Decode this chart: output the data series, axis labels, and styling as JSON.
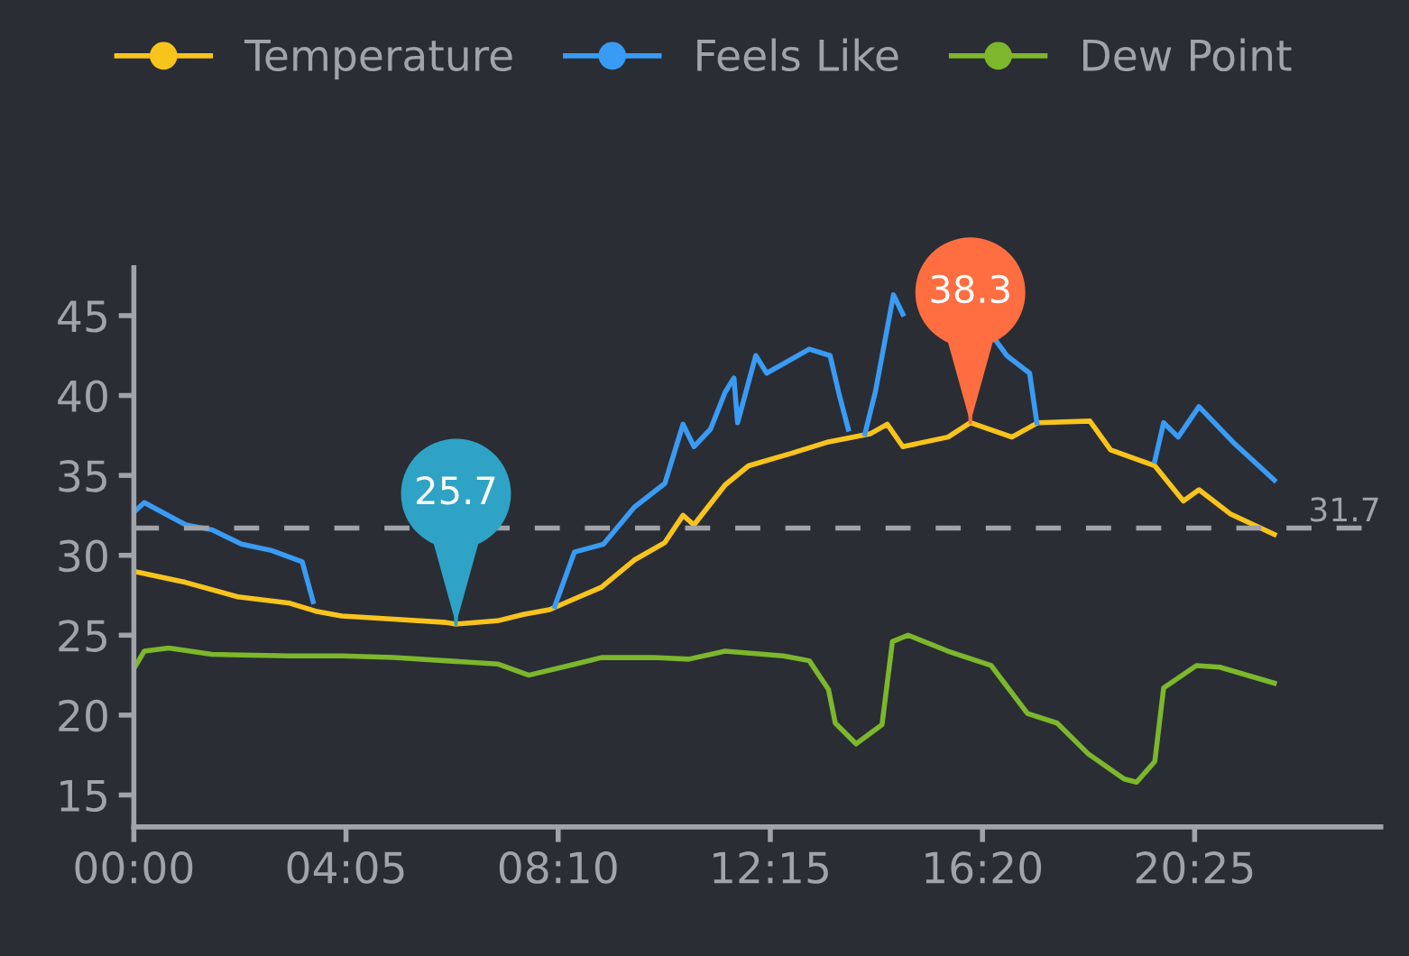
{
  "chart_data": {
    "type": "line",
    "xlim": [
      0,
      24
    ],
    "xticks": [
      {
        "value": 0,
        "label": "00:00"
      },
      {
        "value": 4.0833,
        "label": "04:05"
      },
      {
        "value": 8.1667,
        "label": "08:10"
      },
      {
        "value": 12.25,
        "label": "12:15"
      },
      {
        "value": 16.3333,
        "label": "16:20"
      },
      {
        "value": 20.4167,
        "label": "20:25"
      }
    ],
    "ylim": [
      13,
      48
    ],
    "yticks": [
      15,
      20,
      25,
      30,
      35,
      40,
      45
    ],
    "grid": false,
    "legend": "top",
    "marker": "none",
    "line_style": "solid",
    "series": [
      {
        "name": "Temperature",
        "color": "#f8c41c",
        "x": [
          0,
          1.0,
          2.0,
          3.0,
          3.5,
          4.0,
          5.0,
          6.0,
          6.2,
          7.0,
          7.5,
          8.0,
          8.5,
          9.0,
          9.63,
          10.22,
          10.57,
          10.78,
          11.38,
          11.83,
          12.67,
          13.37,
          14.17,
          14.5,
          14.8,
          15.67,
          16.1,
          16.9,
          17.4,
          18.4,
          18.8,
          19.65,
          20.2,
          20.5,
          21.1,
          21.95
        ],
        "values": [
          29.0,
          28.3,
          27.4,
          27.0,
          26.5,
          26.2,
          26.0,
          25.8,
          25.7,
          25.9,
          26.3,
          26.6,
          27.3,
          28.0,
          29.7,
          30.8,
          32.5,
          31.9,
          34.4,
          35.6,
          36.4,
          37.1,
          37.6,
          38.2,
          36.8,
          37.4,
          38.3,
          37.4,
          38.3,
          38.4,
          36.6,
          35.6,
          33.4,
          34.1,
          32.6,
          31.3
        ]
      },
      {
        "name": "Feels Like",
        "color": "#3a9bf4",
        "x": [
          0,
          0.2,
          1.0,
          1.5,
          2.07,
          2.65,
          3.24,
          3.45,
          3.5,
          8.05,
          8.1,
          8.48,
          9.04,
          9.63,
          10.22,
          10.57,
          10.78,
          11.1,
          11.38,
          11.55,
          11.62,
          11.97,
          12.18,
          13.0,
          13.4,
          13.58,
          13.75,
          13.9,
          14.05,
          14.07,
          14.27,
          14.62,
          14.8,
          14.9,
          16.5,
          16.6,
          16.8,
          17.24,
          17.38,
          17.45,
          19.6,
          19.65,
          19.82,
          20.1,
          20.5,
          21.15,
          21.95
        ],
        "values": [
          32.7,
          33.3,
          31.9,
          31.6,
          30.7,
          30.3,
          29.6,
          27.1,
          null,
          null,
          26.8,
          30.2,
          30.7,
          33.0,
          34.5,
          38.2,
          36.8,
          37.9,
          40.2,
          41.1,
          38.3,
          42.5,
          41.4,
          42.9,
          42.5,
          40.0,
          37.9,
          null,
          null,
          37.6,
          40.2,
          46.3,
          45.1,
          null,
          null,
          43.4,
          42.5,
          41.4,
          38.3,
          null,
          null,
          35.9,
          38.3,
          37.4,
          39.3,
          37.1,
          34.7
        ]
      },
      {
        "name": "Dew Point",
        "color": "#7cb72c",
        "x": [
          0,
          0.2,
          0.67,
          1.5,
          3.0,
          4.0,
          5.0,
          6.0,
          7.0,
          7.6,
          8.5,
          9.0,
          10.0,
          10.68,
          11.38,
          12.5,
          13.0,
          13.37,
          13.5,
          13.9,
          14.4,
          14.6,
          14.9,
          15.67,
          16.5,
          17.2,
          17.77,
          18.36,
          19.06,
          19.3,
          19.65,
          19.82,
          20.45,
          20.9,
          21.95
        ],
        "values": [
          22.9,
          24.0,
          24.2,
          23.8,
          23.7,
          23.7,
          23.6,
          23.4,
          23.2,
          22.5,
          23.2,
          23.6,
          23.6,
          23.5,
          24.0,
          23.7,
          23.4,
          21.6,
          19.5,
          18.2,
          19.4,
          24.6,
          25.0,
          24.0,
          23.1,
          20.1,
          19.5,
          17.6,
          16.0,
          15.8,
          17.1,
          21.7,
          23.1,
          23.0,
          22.0
        ]
      }
    ],
    "ref_lines": [
      {
        "axis": "y",
        "value": 31.7,
        "label": "31.7",
        "color": "#a0a3a8",
        "line_style": "dashed"
      }
    ],
    "annotations": [
      {
        "text": "25.7",
        "x": 6.2,
        "y": 25.7
      },
      {
        "text": "38.3",
        "x": 16.1,
        "y": 38.3
      }
    ]
  }
}
